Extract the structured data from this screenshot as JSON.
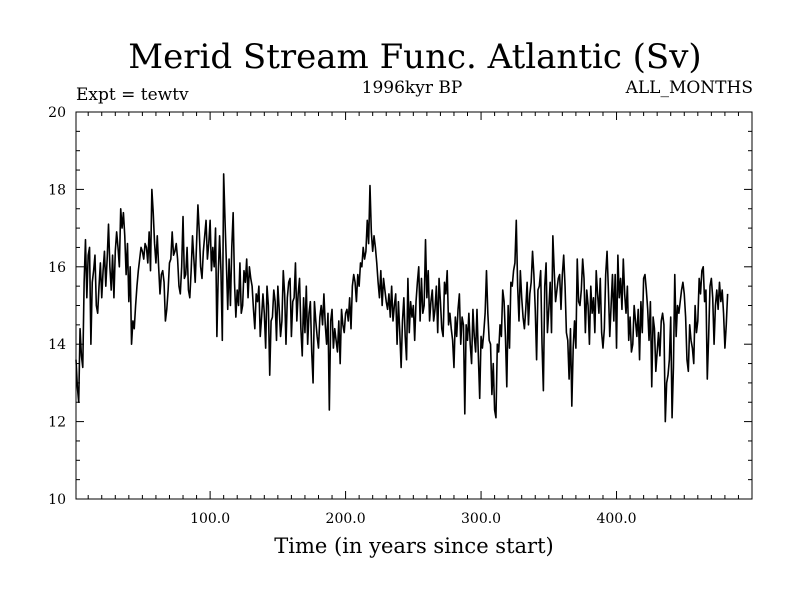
{
  "chart_data": {
    "type": "line",
    "title": "Merid Stream Func. Atlantic (Sv)",
    "subtitle_left": "Expt = tewtv",
    "subtitle_center": "1996kyr BP",
    "subtitle_right": "ALL_MONTHS",
    "xlabel": "Time (in years since start)",
    "ylabel": "",
    "xlim": [
      1,
      500
    ],
    "ylim": [
      10,
      20
    ],
    "x_ticks": [
      100,
      200,
      300,
      400
    ],
    "x_tick_labels": [
      "100.0",
      "200.0",
      "300.0",
      "400.0"
    ],
    "y_ticks": [
      10,
      12,
      14,
      16,
      18,
      20
    ],
    "y_tick_labels": [
      "10",
      "12",
      "14",
      "16",
      "18",
      "20"
    ],
    "grid": false,
    "series": [
      {
        "name": "Merid Stream Func. Atlantic",
        "color": "#000000",
        "x_start": 1,
        "x_step": 1,
        "values": [
          13.6,
          12.9,
          12.5,
          14.4,
          13.7,
          13.4,
          15.6,
          16.7,
          15.2,
          16.3,
          16.5,
          14.0,
          15.6,
          15.9,
          16.3,
          15.0,
          14.8,
          15.5,
          16.1,
          15.2,
          15.9,
          16.4,
          15.5,
          16.2,
          17.1,
          16.0,
          15.4,
          16.3,
          15.2,
          16.4,
          16.9,
          16.5,
          16.0,
          17.5,
          17.0,
          17.4,
          16.8,
          15.8,
          16.6,
          15.1,
          16.0,
          14.0,
          14.6,
          14.4,
          15.0,
          15.5,
          15.9,
          16.2,
          16.5,
          16.4,
          16.2,
          16.6,
          16.5,
          16.1,
          16.9,
          15.9,
          18.0,
          17.4,
          16.6,
          16.1,
          16.8,
          16.0,
          15.3,
          15.8,
          15.9,
          15.6,
          14.6,
          14.9,
          15.4,
          16.1,
          16.2,
          16.9,
          16.3,
          16.4,
          16.6,
          16.2,
          15.5,
          15.3,
          16.0,
          17.3,
          15.7,
          15.8,
          16.5,
          15.4,
          15.2,
          15.9,
          16.8,
          16.2,
          15.6,
          16.6,
          17.6,
          16.9,
          16.0,
          15.7,
          16.4,
          16.8,
          17.2,
          16.2,
          16.6,
          17.2,
          15.9,
          16.5,
          16.0,
          17.0,
          14.2,
          15.8,
          16.8,
          15.9,
          14.1,
          18.4,
          17.2,
          16.1,
          14.9,
          16.2,
          15.0,
          16.5,
          17.4,
          15.6,
          14.7,
          15.4,
          15.0,
          16.1,
          14.8,
          15.0,
          15.9,
          15.6,
          16.2,
          15.2,
          16.0,
          15.7,
          15.5,
          14.9,
          14.4,
          15.3,
          15.1,
          15.5,
          14.2,
          14.7,
          15.3,
          14.8,
          13.9,
          15.5,
          15.0,
          13.2,
          14.6,
          14.7,
          15.4,
          15.1,
          14.1,
          15.5,
          14.9,
          14.2,
          14.6,
          15.9,
          15.3,
          14.0,
          15.2,
          15.6,
          15.7,
          14.2,
          15.1,
          15.2,
          16.1,
          14.6,
          15.3,
          15.7,
          14.4,
          13.7,
          15.2,
          14.3,
          15.5,
          14.0,
          14.8,
          15.1,
          13.8,
          13.0,
          15.1,
          14.6,
          14.2,
          13.9,
          14.7,
          15.0,
          14.5,
          15.3,
          14.5,
          14.0,
          14.8,
          12.3,
          14.6,
          14.9,
          13.9,
          14.4,
          14.1,
          13.8,
          14.6,
          13.5,
          14.9,
          14.5,
          14.3,
          14.8,
          14.9,
          14.6,
          15.2,
          14.4,
          15.5,
          15.8,
          15.6,
          15.1,
          15.8,
          15.5,
          16.1,
          16.0,
          16.5,
          16.2,
          16.4,
          17.2,
          16.6,
          18.1,
          16.9,
          16.4,
          16.8,
          16.5,
          16.1,
          15.6,
          15.2,
          15.9,
          15.0,
          15.7,
          15.4,
          15.1,
          14.9,
          15.3,
          14.7,
          15.5,
          14.6,
          15.0,
          15.3,
          14.0,
          15.1,
          14.3,
          13.4,
          14.6,
          15.2,
          14.2,
          13.6,
          15.7,
          14.3,
          15.1,
          14.7,
          15.0,
          14.1,
          15.1,
          15.6,
          16.0,
          14.6,
          15.7,
          14.8,
          15.0,
          16.7,
          15.2,
          15.9,
          14.6,
          15.1,
          15.4,
          14.6,
          14.9,
          15.5,
          14.3,
          15.7,
          15.1,
          14.4,
          14.2,
          15.6,
          15.3,
          15.9,
          14.5,
          14.8,
          14.4,
          14.1,
          13.4,
          14.7,
          14.2,
          14.9,
          15.3,
          14.0,
          14.7,
          14.5,
          12.2,
          14.5,
          14.1,
          14.8,
          14.0,
          13.5,
          14.9,
          14.2,
          13.8,
          14.9,
          13.7,
          12.6,
          14.2,
          13.9,
          14.3,
          14.8,
          15.9,
          14.8,
          14.1,
          14.0,
          12.7,
          13.5,
          12.3,
          12.1,
          14.0,
          13.8,
          14.5,
          14.2,
          15.4,
          15.1,
          14.2,
          12.9,
          15.0,
          13.9,
          15.6,
          15.5,
          15.9,
          16.1,
          17.2,
          15.5,
          14.6,
          15.9,
          15.2,
          14.7,
          14.4,
          14.9,
          15.6,
          14.5,
          15.3,
          15.6,
          16.4,
          15.8,
          14.9,
          13.6,
          15.4,
          15.5,
          15.9,
          14.0,
          12.8,
          15.5,
          16.1,
          14.3,
          14.9,
          15.6,
          14.3,
          16.8,
          15.9,
          15.1,
          15.4,
          15.7,
          15.8,
          14.9,
          15.8,
          16.3,
          15.5,
          14.3,
          14.1,
          13.1,
          14.4,
          12.4,
          13.9,
          14.6,
          13.9,
          16.2,
          15.1,
          15.0,
          15.4,
          16.2,
          15.7,
          14.3,
          15.4,
          15.0,
          14.0,
          15.5,
          14.8,
          15.2,
          14.3,
          15.9,
          15.3,
          14.8,
          15.7,
          14.3,
          13.9,
          14.4,
          15.8,
          16.4,
          15.4,
          14.2,
          15.0,
          15.8,
          14.6,
          15.8,
          13.9,
          16.3,
          15.2,
          15.7,
          14.9,
          16.2,
          15.3,
          14.8,
          15.5,
          14.1,
          14.7,
          13.8,
          14.0,
          15.0,
          14.6,
          14.2,
          14.9,
          13.6,
          15.1,
          14.3,
          15.7,
          15.8,
          15.4,
          14.9,
          14.1,
          15.1,
          12.9,
          14.7,
          14.4,
          13.3,
          13.8,
          14.3,
          13.7,
          14.6,
          14.8,
          14.5,
          12.0,
          13.0,
          13.2,
          13.6,
          14.7,
          12.1,
          13.4,
          15.8,
          14.2,
          15.0,
          14.8,
          15.1,
          15.4,
          15.6,
          15.3,
          14.7,
          13.6,
          13.3,
          14.5,
          14.1,
          13.9,
          13.5,
          15.0,
          14.3,
          14.6,
          15.7,
          15.3,
          15.9,
          16.0,
          15.1,
          15.4,
          13.1,
          14.2,
          15.5,
          15.7,
          15.2,
          14.0,
          15.0,
          15.4,
          14.9,
          15.6,
          15.1,
          15.4,
          14.8,
          13.9,
          14.5,
          15.3
        ]
      }
    ]
  }
}
